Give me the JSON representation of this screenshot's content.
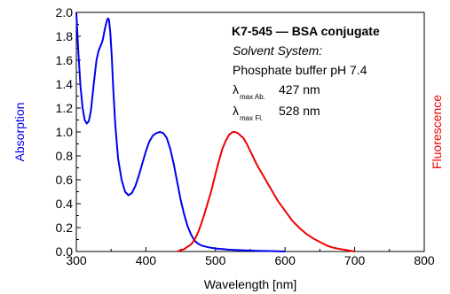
{
  "chart_data": {
    "type": "line",
    "title": "",
    "xlabel": "Wavelength [nm]",
    "ylabel_left": "Absorption",
    "ylabel_right": "Fluorescence",
    "xlim": [
      300,
      800
    ],
    "ylim": [
      0,
      2.0
    ],
    "x_ticks": [
      300,
      400,
      500,
      600,
      700,
      800
    ],
    "y_ticks": [
      0.0,
      0.2,
      0.4,
      0.6,
      0.8,
      1.0,
      1.2,
      1.4,
      1.6,
      1.8,
      2.0
    ],
    "y_tick_labels": [
      "0.0",
      "0.2",
      "0.4",
      "0.6",
      "0.8",
      "1.0",
      "1.2",
      "1.4",
      "1.6",
      "1.8",
      "2.0"
    ],
    "grid": false,
    "annotations": {
      "heading": "K7-545 — BSA conjugate",
      "solvent_label": "Solvent System:",
      "solvent_value": "Phosphate buffer pH 7.4",
      "lambda_symbol": "λ",
      "abs_sub": "max Ab.",
      "abs_value": "427 nm",
      "fl_sub": "max Fl.",
      "fl_value": "528 nm"
    },
    "series": [
      {
        "color": "#0000ee",
        "x": [
          300,
          303,
          306,
          309,
          312,
          315,
          318,
          321,
          325,
          329,
          332,
          335,
          338,
          341,
          343,
          345,
          347,
          349,
          351,
          353,
          356,
          360,
          365,
          370,
          375,
          380,
          385,
          390,
          395,
          400,
          405,
          410,
          415,
          420,
          425,
          430,
          435,
          440,
          445,
          450,
          455,
          460,
          465,
          470,
          475,
          480,
          490,
          500,
          510,
          520,
          540,
          560,
          580,
          600
        ],
        "y": [
          2.0,
          1.65,
          1.38,
          1.2,
          1.1,
          1.07,
          1.09,
          1.18,
          1.4,
          1.6,
          1.68,
          1.72,
          1.77,
          1.86,
          1.91,
          1.95,
          1.94,
          1.82,
          1.62,
          1.36,
          1.06,
          0.78,
          0.6,
          0.5,
          0.47,
          0.49,
          0.55,
          0.64,
          0.74,
          0.84,
          0.92,
          0.97,
          0.99,
          1.0,
          0.99,
          0.95,
          0.86,
          0.73,
          0.58,
          0.43,
          0.31,
          0.21,
          0.14,
          0.09,
          0.065,
          0.05,
          0.035,
          0.025,
          0.02,
          0.015,
          0.01,
          0.006,
          0.004,
          0.0
        ]
      },
      {
        "color": "#ee0000",
        "x": [
          445,
          450,
          455,
          460,
          465,
          470,
          475,
          480,
          485,
          490,
          495,
          500,
          505,
          510,
          515,
          520,
          525,
          528,
          532,
          536,
          540,
          545,
          550,
          555,
          560,
          565,
          570,
          575,
          580,
          585,
          590,
          600,
          610,
          620,
          630,
          640,
          650,
          660,
          670,
          680,
          690,
          700
        ],
        "y": [
          0.0,
          0.01,
          0.02,
          0.04,
          0.06,
          0.1,
          0.16,
          0.24,
          0.33,
          0.43,
          0.53,
          0.65,
          0.76,
          0.86,
          0.93,
          0.98,
          1.0,
          1.0,
          0.99,
          0.97,
          0.95,
          0.9,
          0.84,
          0.78,
          0.72,
          0.67,
          0.62,
          0.57,
          0.52,
          0.47,
          0.42,
          0.34,
          0.26,
          0.2,
          0.15,
          0.11,
          0.08,
          0.05,
          0.03,
          0.02,
          0.01,
          0.0
        ]
      }
    ]
  }
}
